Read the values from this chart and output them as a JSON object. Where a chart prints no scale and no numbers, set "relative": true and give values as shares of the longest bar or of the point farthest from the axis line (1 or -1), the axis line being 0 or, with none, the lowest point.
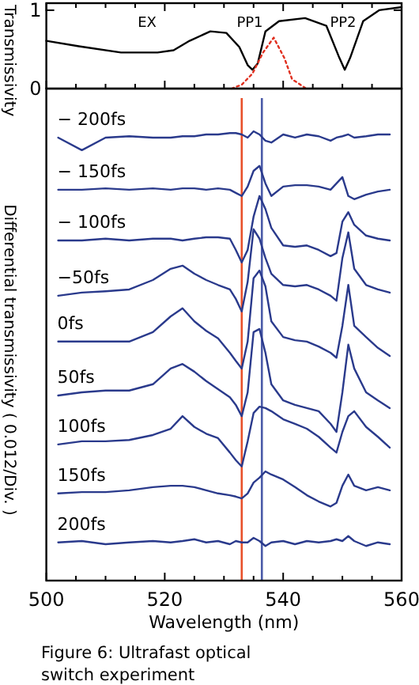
{
  "chart_data": [
    {
      "type": "line",
      "ylabel": "Transmissivity",
      "xlim": [
        500,
        560
      ],
      "ylim": [
        0,
        1.09
      ],
      "yticks": [
        0,
        1
      ],
      "tick_labels": "y",
      "grid": false,
      "marker": "none",
      "xticks": [
        500,
        {
          "value": 505,
          "label": null
        },
        {
          "value": 510,
          "label": null
        },
        {
          "value": 515,
          "label": null
        },
        520,
        {
          "value": 525,
          "label": null
        },
        {
          "value": 530,
          "label": null
        },
        {
          "value": 535,
          "label": null
        },
        540,
        {
          "value": 545,
          "label": null
        },
        {
          "value": 550,
          "label": null
        },
        {
          "value": 555,
          "label": null
        },
        560
      ],
      "annotations": [
        "EX",
        "PP1",
        "PP2"
      ],
      "series": [
        {
          "color": "#000000",
          "line_style": "solid",
          "x": [
            500,
            505.5,
            512.6,
            518.8,
            521.5,
            524.2,
            527.7,
            530.4,
            532.6,
            534,
            534.8,
            535.7,
            537,
            539.3,
            543.7,
            547.3,
            549.5,
            550.4,
            551.3,
            553.5,
            556.2,
            560
          ],
          "values": [
            0.61,
            0.54,
            0.46,
            0.46,
            0.49,
            0.61,
            0.73,
            0.71,
            0.53,
            0.3,
            0.24,
            0.32,
            0.73,
            0.86,
            0.9,
            0.8,
            0.39,
            0.24,
            0.39,
            0.86,
            1,
            1.04
          ]
        },
        {
          "color": "#e03020",
          "line_style": "dotted",
          "x": [
            531.3,
            533,
            534.8,
            536.6,
            538.4,
            540.2,
            541.5,
            543.7
          ],
          "values": [
            0,
            0.05,
            0.19,
            0.46,
            0.65,
            0.39,
            0.12,
            0.01
          ]
        }
      ]
    },
    {
      "type": "line",
      "relative": true,
      "xlabel": "Wavelength (nm)",
      "ylabel": "Differential transmissivity ( 0.012/Div. )",
      "xlim": [
        500,
        560
      ],
      "tick_labels": "x",
      "grid": false,
      "marker": "none",
      "line_style": "solid",
      "xticks": [
        500,
        {
          "value": 505,
          "label": null
        },
        {
          "value": 510,
          "label": null
        },
        {
          "value": 515,
          "label": null
        },
        520,
        {
          "value": 525,
          "label": null
        },
        {
          "value": 530,
          "label": null
        },
        {
          "value": 535,
          "label": null
        },
        540,
        {
          "value": 545,
          "label": null
        },
        {
          "value": 550,
          "label": null
        },
        {
          "value": 555,
          "label": null
        },
        560
      ],
      "annotations": [
        "Figure 6: Ultrafast optical switch experiment"
      ],
      "ref_lines": [
        {
          "axis": "x",
          "value": 533,
          "color": "#e8502a"
        },
        {
          "axis": "x",
          "value": 536.4,
          "color": "#4a5aa8"
        }
      ],
      "x": [
        502,
        506,
        510,
        514,
        518,
        521,
        523,
        525,
        527,
        529,
        531,
        532,
        533,
        534,
        535,
        536,
        537,
        538,
        540,
        542,
        544,
        546,
        548,
        549,
        550,
        551,
        552,
        554,
        556,
        558
      ],
      "series": [
        {
          "name": "− 200fs",
          "color": "#2a3a8c",
          "values": [
            0.986,
            0.958,
            0.986,
            0.989,
            0.986,
            0.986,
            0.989,
            0.989,
            0.993,
            0.993,
            0.996,
            0.996,
            0.993,
            0.986,
            1,
            0.993,
            0.979,
            0.975,
            0.993,
            0.986,
            0.993,
            0.989,
            0.979,
            0.986,
            0.989,
            0.993,
            0.986,
            0.989,
            0.993,
            0.993
          ]
        },
        {
          "name": "− 150fs",
          "color": "#2a3a8c",
          "values": [
            0.87,
            0.87,
            0.873,
            0.87,
            0.873,
            0.87,
            0.873,
            0.873,
            0.87,
            0.873,
            0.87,
            0.863,
            0.856,
            0.877,
            0.912,
            0.923,
            0.884,
            0.856,
            0.877,
            0.88,
            0.88,
            0.877,
            0.87,
            0.884,
            0.898,
            0.856,
            0.849,
            0.859,
            0.866,
            0.87
          ]
        },
        {
          "name": "− 100fs",
          "color": "#2a3a8c",
          "values": [
            0.757,
            0.757,
            0.761,
            0.757,
            0.761,
            0.761,
            0.757,
            0.761,
            0.764,
            0.764,
            0.761,
            0.736,
            0.708,
            0.736,
            0.81,
            0.856,
            0.827,
            0.785,
            0.746,
            0.743,
            0.746,
            0.736,
            0.722,
            0.729,
            0.799,
            0.82,
            0.792,
            0.768,
            0.761,
            0.757
          ]
        },
        {
          "name": "−50fs",
          "color": "#2a3a8c",
          "values": [
            0.634,
            0.641,
            0.644,
            0.648,
            0.669,
            0.694,
            0.701,
            0.683,
            0.669,
            0.658,
            0.648,
            0.627,
            0.599,
            0.665,
            0.782,
            0.761,
            0.718,
            0.683,
            0.658,
            0.655,
            0.658,
            0.648,
            0.634,
            0.623,
            0.718,
            0.775,
            0.694,
            0.658,
            0.648,
            0.641
          ]
        },
        {
          "name": "0fs",
          "color": "#2a3a8c",
          "values": [
            0.532,
            0.532,
            0.532,
            0.532,
            0.553,
            0.588,
            0.606,
            0.577,
            0.556,
            0.539,
            0.507,
            0.489,
            0.472,
            0.532,
            0.673,
            0.69,
            0.655,
            0.577,
            0.542,
            0.535,
            0.532,
            0.521,
            0.507,
            0.496,
            0.567,
            0.658,
            0.567,
            0.542,
            0.518,
            0.5
          ]
        },
        {
          "name": "50fs",
          "color": "#2a3a8c",
          "values": [
            0.412,
            0.419,
            0.423,
            0.423,
            0.437,
            0.472,
            0.482,
            0.465,
            0.444,
            0.426,
            0.408,
            0.391,
            0.366,
            0.419,
            0.553,
            0.56,
            0.507,
            0.437,
            0.401,
            0.391,
            0.384,
            0.377,
            0.349,
            0.331,
            0.419,
            0.525,
            0.472,
            0.419,
            0.401,
            0.384
          ]
        },
        {
          "name": "100fs",
          "color": "#2a3a8c",
          "values": [
            0.303,
            0.31,
            0.31,
            0.313,
            0.324,
            0.338,
            0.366,
            0.342,
            0.327,
            0.317,
            0.285,
            0.268,
            0.254,
            0.31,
            0.373,
            0.387,
            0.384,
            0.377,
            0.359,
            0.349,
            0.338,
            0.32,
            0.296,
            0.285,
            0.331,
            0.366,
            0.377,
            0.342,
            0.32,
            0.296
          ]
        },
        {
          "name": "150fs",
          "color": "#2a3a8c",
          "values": [
            0.194,
            0.197,
            0.197,
            0.201,
            0.208,
            0.211,
            0.211,
            0.208,
            0.201,
            0.194,
            0.19,
            0.187,
            0.183,
            0.194,
            0.218,
            0.229,
            0.243,
            0.236,
            0.225,
            0.208,
            0.19,
            0.176,
            0.165,
            0.173,
            0.211,
            0.236,
            0.211,
            0.201,
            0.208,
            0.201
          ]
        },
        {
          "name": "200fs",
          "color": "#2a3a8c",
          "values": [
            0.085,
            0.088,
            0.081,
            0.085,
            0.088,
            0.085,
            0.088,
            0.092,
            0.085,
            0.088,
            0.081,
            0.088,
            0.085,
            0.085,
            0.095,
            0.088,
            0.077,
            0.085,
            0.088,
            0.081,
            0.088,
            0.085,
            0.088,
            0.092,
            0.088,
            0.099,
            0.088,
            0.077,
            0.085,
            0.081
          ]
        }
      ]
    }
  ]
}
